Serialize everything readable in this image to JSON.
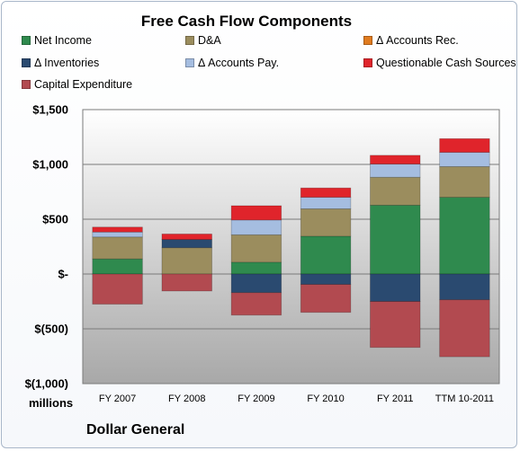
{
  "chart_data": {
    "type": "bar",
    "stacked": true,
    "title": "Free Cash Flow Components",
    "categories": [
      "FY 2007",
      "FY 2008",
      "FY 2009",
      "FY 2010",
      "FY 2011",
      "TTM 10-2011"
    ],
    "yunit": "millions",
    "ylim": [
      -1000,
      1500
    ],
    "yticks": [
      -1000,
      -500,
      0,
      500,
      1000,
      1500
    ],
    "ytick_labels": [
      "$(1,000)",
      "$(500)",
      "$-",
      "$500",
      "$1,000",
      "$1,500"
    ],
    "grid": true,
    "legend_position": "top",
    "series": [
      {
        "name": "Net Income",
        "color": "#2f8a4e",
        "values": [
          138,
          0,
          108,
          345,
          628,
          700
        ]
      },
      {
        "name": "D&A",
        "color": "#9b8d5e",
        "values": [
          200,
          240,
          250,
          250,
          255,
          280
        ]
      },
      {
        "name": "Δ Accounts Rec.",
        "color": "#e07b1f",
        "values": [
          0,
          0,
          0,
          0,
          0,
          0
        ]
      },
      {
        "name": "Δ Inventories",
        "color": "#2a4a70",
        "values": [
          0,
          75,
          -170,
          -95,
          -250,
          -235
        ]
      },
      {
        "name": "Δ Accounts Pay.",
        "color": "#a5bde0",
        "values": [
          45,
          0,
          135,
          105,
          120,
          130
        ]
      },
      {
        "name": "Questionable Cash Sources",
        "color": "#e0242b",
        "values": [
          45,
          50,
          130,
          85,
          80,
          125
        ]
      },
      {
        "name": "Capital Expenditure",
        "color": "#b24a50",
        "values": [
          -275,
          -155,
          -205,
          -255,
          -420,
          -520
        ]
      }
    ]
  },
  "footer": {
    "units_label": "millions",
    "company": "Dollar General"
  }
}
